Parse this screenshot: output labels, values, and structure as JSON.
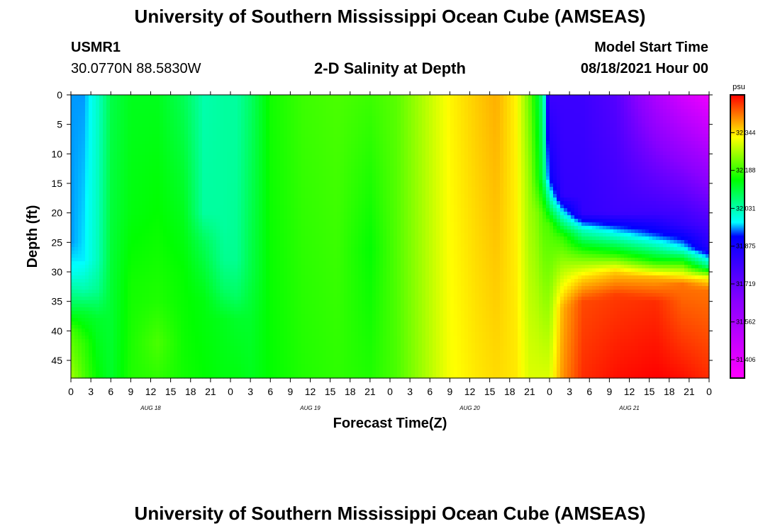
{
  "header": {
    "title": "University of Southern Mississippi Ocean Cube (AMSEAS)",
    "station": "USMR1",
    "coords": "30.0770N  88.5830W",
    "plot_title": "2-D Salinity at Depth",
    "model_start_label": "Model Start Time",
    "model_start_value": "08/18/2021 Hour 00"
  },
  "footer": {
    "title": "University of Southern Mississippi Ocean Cube (AMSEAS)"
  },
  "chart_data": {
    "type": "heatmap",
    "title": "2-D Salinity at Depth",
    "xlabel": "Forecast Time(Z)",
    "ylabel": "Depth (ft)",
    "x_ticks": [
      "0",
      "3",
      "6",
      "9",
      "12",
      "15",
      "18",
      "21",
      "0",
      "3",
      "6",
      "9",
      "12",
      "15",
      "18",
      "21",
      "0",
      "3",
      "6",
      "9",
      "12",
      "15",
      "18",
      "21",
      "0",
      "3",
      "6",
      "9",
      "12",
      "15",
      "18",
      "21",
      "0"
    ],
    "x_hours_range": [
      0,
      96
    ],
    "day_labels": [
      {
        "label": "AUG 18",
        "hour": 12
      },
      {
        "label": "AUG 19",
        "hour": 36
      },
      {
        "label": "AUG 20",
        "hour": 60
      },
      {
        "label": "AUG 21",
        "hour": 84
      }
    ],
    "y_ticks": [
      "0",
      "5",
      "10",
      "15",
      "20",
      "25",
      "30",
      "35",
      "40",
      "45"
    ],
    "ylim": [
      0,
      48
    ],
    "y_reversed": true,
    "colorbar": {
      "unit": "psu",
      "range": [
        31.33,
        32.5
      ],
      "tick_labels": [
        "32.344",
        "32.188",
        "32.031",
        "31.875",
        "31.719",
        "31.562",
        "31.406"
      ],
      "tick_values": [
        32.344,
        32.188,
        32.031,
        31.875,
        31.719,
        31.562,
        31.406
      ]
    },
    "field_points": [
      {
        "hour": 0,
        "profile": [
          [
            0,
            31.95
          ],
          [
            25,
            31.95
          ],
          [
            30,
            31.98
          ],
          [
            36,
            32.1
          ],
          [
            40,
            32.2
          ],
          [
            48,
            32.26
          ]
        ]
      },
      {
        "hour": 2,
        "profile": [
          [
            0,
            31.95
          ],
          [
            28,
            31.97
          ],
          [
            33,
            32.03
          ],
          [
            37,
            32.12
          ],
          [
            42,
            32.18
          ],
          [
            48,
            32.2
          ]
        ]
      },
      {
        "hour": 4,
        "profile": [
          [
            0,
            32.01
          ],
          [
            28,
            32.02
          ],
          [
            33,
            32.05
          ],
          [
            38,
            32.12
          ],
          [
            48,
            32.15
          ]
        ]
      },
      {
        "hour": 6,
        "profile": [
          [
            0,
            32.1
          ],
          [
            48,
            32.12
          ]
        ]
      },
      {
        "hour": 9,
        "profile": [
          [
            0,
            32.13
          ],
          [
            20,
            32.14
          ],
          [
            32,
            32.16
          ],
          [
            48,
            32.17
          ]
        ]
      },
      {
        "hour": 13,
        "profile": [
          [
            0,
            32.13
          ],
          [
            20,
            32.15
          ],
          [
            35,
            32.17
          ],
          [
            42,
            32.2
          ],
          [
            48,
            32.18
          ]
        ]
      },
      {
        "hour": 17,
        "profile": [
          [
            0,
            32.09
          ],
          [
            15,
            32.12
          ],
          [
            30,
            32.15
          ],
          [
            48,
            32.16
          ]
        ]
      },
      {
        "hour": 20,
        "profile": [
          [
            0,
            32.03
          ],
          [
            20,
            32.04
          ],
          [
            25,
            32.09
          ],
          [
            35,
            32.14
          ],
          [
            48,
            32.15
          ]
        ]
      },
      {
        "hour": 23,
        "profile": [
          [
            0,
            32.04
          ],
          [
            22,
            32.04
          ],
          [
            28,
            32.05
          ],
          [
            33,
            32.08
          ],
          [
            38,
            32.13
          ],
          [
            48,
            32.14
          ]
        ]
      },
      {
        "hour": 25,
        "profile": [
          [
            0,
            32.04
          ],
          [
            28,
            32.05
          ],
          [
            34,
            32.08
          ],
          [
            38,
            32.12
          ],
          [
            48,
            32.14
          ]
        ]
      },
      {
        "hour": 27,
        "profile": [
          [
            0,
            32.08
          ],
          [
            30,
            32.1
          ],
          [
            38,
            32.12
          ],
          [
            48,
            32.13
          ]
        ]
      },
      {
        "hour": 30,
        "profile": [
          [
            0,
            32.16
          ],
          [
            48,
            32.15
          ]
        ]
      },
      {
        "hour": 35,
        "profile": [
          [
            0,
            32.19
          ],
          [
            48,
            32.17
          ]
        ]
      },
      {
        "hour": 40,
        "profile": [
          [
            0,
            32.2
          ],
          [
            48,
            32.18
          ]
        ]
      },
      {
        "hour": 45,
        "profile": [
          [
            0,
            32.19
          ],
          [
            26,
            32.15
          ],
          [
            48,
            32.17
          ]
        ]
      },
      {
        "hour": 49,
        "profile": [
          [
            0,
            32.21
          ],
          [
            48,
            32.2
          ]
        ]
      },
      {
        "hour": 53,
        "profile": [
          [
            0,
            32.27
          ],
          [
            48,
            32.26
          ]
        ]
      },
      {
        "hour": 57,
        "profile": [
          [
            0,
            32.33
          ],
          [
            48,
            32.32
          ]
        ]
      },
      {
        "hour": 61,
        "profile": [
          [
            0,
            32.36
          ],
          [
            48,
            32.34
          ]
        ]
      },
      {
        "hour": 64,
        "profile": [
          [
            0,
            32.38
          ],
          [
            48,
            32.35
          ]
        ]
      },
      {
        "hour": 67,
        "profile": [
          [
            0,
            32.33
          ],
          [
            48,
            32.34
          ]
        ]
      },
      {
        "hour": 69,
        "profile": [
          [
            0,
            32.22
          ],
          [
            15,
            32.25
          ],
          [
            48,
            32.3
          ]
        ]
      },
      {
        "hour": 70,
        "profile": [
          [
            0,
            32.14
          ],
          [
            14,
            32.18
          ],
          [
            20,
            32.24
          ],
          [
            48,
            32.3
          ]
        ]
      },
      {
        "hour": 71,
        "profile": [
          [
            0,
            32.06
          ],
          [
            14,
            32.1
          ],
          [
            20,
            32.2
          ],
          [
            48,
            32.3
          ]
        ]
      },
      {
        "hour": 72,
        "profile": [
          [
            0,
            31.8
          ],
          [
            14,
            31.9
          ],
          [
            18,
            32.05
          ],
          [
            22,
            32.2
          ],
          [
            48,
            32.3
          ]
        ]
      },
      {
        "hour": 74,
        "profile": [
          [
            0,
            31.8
          ],
          [
            17,
            31.82
          ],
          [
            20,
            31.98
          ],
          [
            24,
            32.18
          ],
          [
            30,
            32.28
          ],
          [
            36,
            32.38
          ],
          [
            48,
            32.4
          ]
        ]
      },
      {
        "hour": 77,
        "profile": [
          [
            0,
            31.8
          ],
          [
            20,
            31.82
          ],
          [
            23,
            32.02
          ],
          [
            27,
            32.2
          ],
          [
            31,
            32.35
          ],
          [
            35,
            32.45
          ],
          [
            48,
            32.47
          ]
        ]
      },
      {
        "hour": 82,
        "profile": [
          [
            0,
            31.75
          ],
          [
            20,
            31.8
          ],
          [
            23,
            31.96
          ],
          [
            27,
            32.17
          ],
          [
            30,
            32.36
          ],
          [
            34,
            32.46
          ],
          [
            48,
            32.49
          ]
        ]
      },
      {
        "hour": 88,
        "profile": [
          [
            0,
            31.55
          ],
          [
            20,
            31.8
          ],
          [
            24,
            31.94
          ],
          [
            28,
            32.15
          ],
          [
            31,
            32.38
          ],
          [
            35,
            32.47
          ],
          [
            48,
            32.5
          ]
        ]
      },
      {
        "hour": 92,
        "profile": [
          [
            0,
            31.45
          ],
          [
            22,
            31.82
          ],
          [
            26,
            31.98
          ],
          [
            29,
            32.22
          ],
          [
            32,
            32.42
          ],
          [
            48,
            32.49
          ]
        ]
      },
      {
        "hour": 96,
        "profile": [
          [
            0,
            31.38
          ],
          [
            26,
            31.85
          ],
          [
            29,
            32.05
          ],
          [
            31,
            32.32
          ],
          [
            33,
            32.42
          ],
          [
            48,
            32.47
          ]
        ]
      }
    ]
  }
}
